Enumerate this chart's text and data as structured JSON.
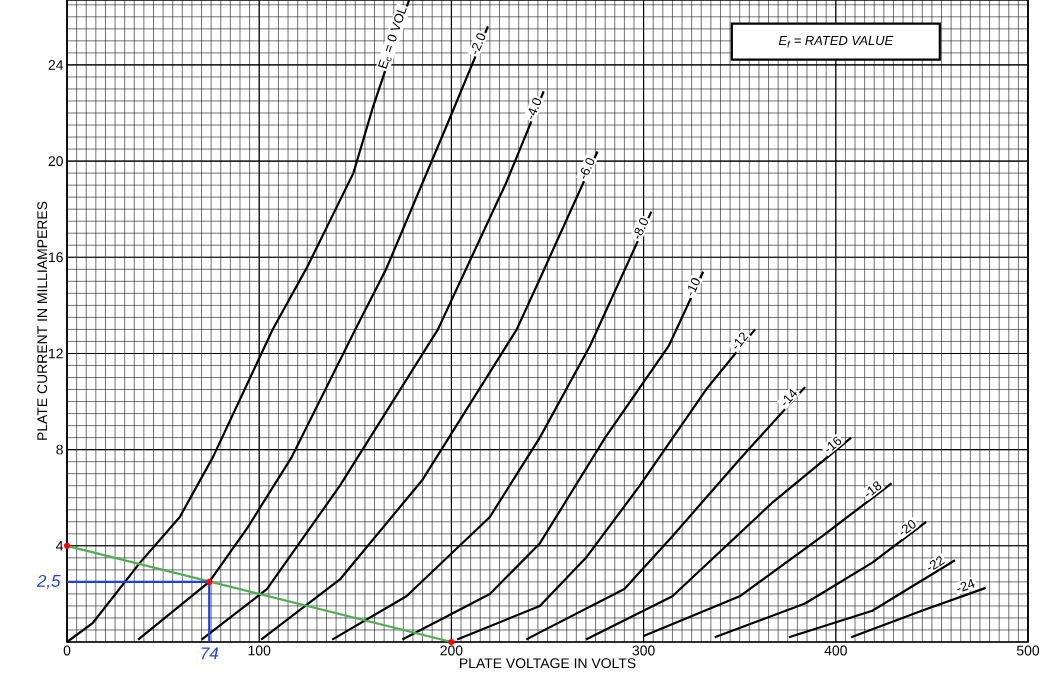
{
  "chart_data": {
    "type": "line",
    "xlabel": "PLATE VOLTAGE IN VOLTS",
    "ylabel": "PLATE CURRENT IN MILLIAMPERES",
    "xlim": [
      0,
      500
    ],
    "ylim": [
      0,
      26.7
    ],
    "xticks": [
      0,
      100,
      200,
      300,
      400,
      500
    ],
    "yticks": [
      4,
      8,
      12,
      16,
      20,
      24
    ],
    "grid": true,
    "annotations": [
      "E$_{f}$ = RATED VALUE",
      {
        "text": "2,5",
        "x": 0,
        "y": 2.5
      },
      {
        "text": "74",
        "x": 74,
        "y": 0
      }
    ],
    "series": [
      {
        "name": "E$_{c}$ = 0 VOL",
        "color": "#000000",
        "x": [
          0,
          13.5,
          38,
          58.7,
          76,
          107,
          125,
          149,
          159,
          178
        ],
        "values": [
          0,
          0.8,
          3.3,
          5.2,
          7.7,
          13,
          15.6,
          19.5,
          22.2,
          26.7
        ]
      },
      {
        "name": "-2.0",
        "color": "#000000",
        "x": [
          37,
          74,
          93.5,
          117,
          150,
          166,
          199,
          219
        ],
        "values": [
          0.1,
          2.5,
          4.7,
          7.7,
          13,
          15.5,
          21.75,
          25.6
        ]
      },
      {
        "name": "-4.0",
        "color": "#000000",
        "x": [
          70,
          104,
          142,
          193,
          228.5,
          248
        ],
        "values": [
          0.1,
          2.2,
          6.5,
          13,
          19.1,
          22.9
        ]
      },
      {
        "name": "-6.0",
        "color": "#000000",
        "x": [
          101,
          142,
          185,
          234,
          246,
          276
        ],
        "values": [
          0.1,
          2.6,
          6.75,
          13,
          15.1,
          20.4
        ]
      },
      {
        "name": "-8.0",
        "color": "#000000",
        "x": [
          138,
          176.6,
          220,
          246,
          272,
          304
        ],
        "values": [
          0.1,
          1.9,
          5.2,
          8.5,
          12.3,
          17.9
        ]
      },
      {
        "name": "-10",
        "color": "#000000",
        "x": [
          174.5,
          220,
          246,
          280,
          313,
          331
        ],
        "values": [
          0.1,
          2.0,
          4.1,
          8.5,
          12.3,
          15.4
        ]
      },
      {
        "name": "-12",
        "color": "#000000",
        "x": [
          203,
          246,
          270,
          298,
          332.5,
          358
        ],
        "values": [
          0.1,
          1.5,
          3.5,
          6.5,
          10.5,
          13.0
        ]
      },
      {
        "name": "-14",
        "color": "#000000",
        "x": [
          239,
          246,
          290,
          315,
          350,
          384
        ],
        "values": [
          0.1,
          0.4,
          2.2,
          4.4,
          7.6,
          10.6
        ]
      },
      {
        "name": "-16",
        "color": "#000000",
        "x": [
          270,
          315,
          367,
          408
        ],
        "values": [
          0.1,
          1.9,
          5.8,
          8.5
        ]
      },
      {
        "name": "-18",
        "color": "#000000",
        "x": [
          300,
          350,
          393,
          429
        ],
        "values": [
          0.25,
          1.9,
          4.4,
          6.6
        ]
      },
      {
        "name": "-20",
        "color": "#000000",
        "x": [
          337,
          384,
          419,
          447
        ],
        "values": [
          0.2,
          1.6,
          3.3,
          5.0
        ]
      },
      {
        "name": "-22",
        "color": "#000000",
        "x": [
          375.6,
          419,
          462
        ],
        "values": [
          0.2,
          1.3,
          3.4
        ]
      },
      {
        "name": "-24",
        "color": "#000000",
        "x": [
          408,
          444.7,
          478
        ],
        "values": [
          0.2,
          1.3,
          2.25
        ]
      },
      {
        "color": "#4caf50",
        "x": [
          0,
          200
        ],
        "values": [
          4,
          0
        ]
      },
      {
        "color": "#1f3fe6",
        "x": [
          0,
          74,
          74
        ],
        "values": [
          2.5,
          2.5,
          0
        ]
      },
      {
        "type": "scatter",
        "marker": "circle",
        "color": "#ff0000",
        "x": [
          0,
          74,
          200
        ],
        "values": [
          4,
          2.5,
          0
        ]
      }
    ]
  }
}
